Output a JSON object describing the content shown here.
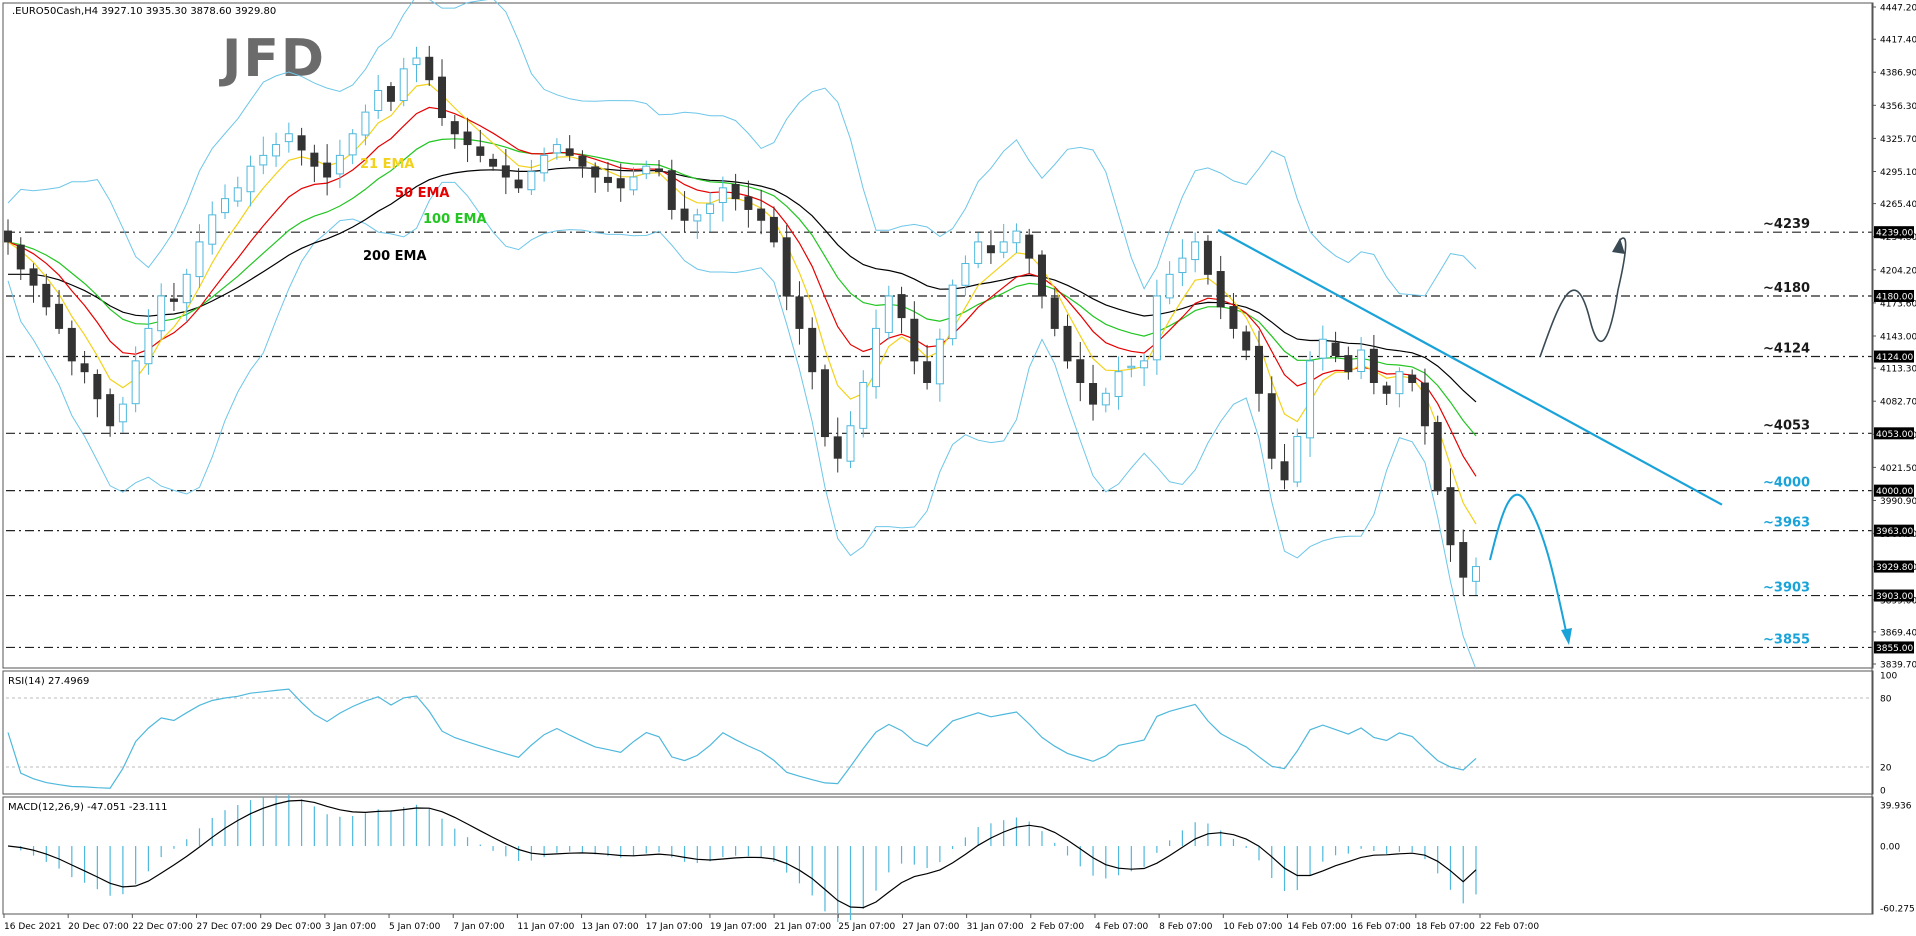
{
  "header": {
    "symbol_info": ".EURO50Cash,H4  3927.10 3935.30 3878.60 3929.80",
    "logo": "JFD"
  },
  "price_axis": {
    "ticks": [
      "4447.20",
      "4417.40",
      "4386.90",
      "4356.30",
      "4325.70",
      "4295.10",
      "4265.40",
      "4234.80",
      "4204.20",
      "4173.60",
      "4143.00",
      "4113.30",
      "4082.70",
      "4052.10",
      "4021.50",
      "3990.90",
      "3960.30",
      "3929.70",
      "3899.00",
      "3869.40",
      "3839.70"
    ],
    "boxes": [
      {
        "label": "4239.00",
        "value": 4239,
        "color": "#000000"
      },
      {
        "label": "4180.00",
        "value": 4180,
        "color": "#000000"
      },
      {
        "label": "4124.00",
        "value": 4124,
        "color": "#000000"
      },
      {
        "label": "4053.00",
        "value": 4053,
        "color": "#000000"
      },
      {
        "label": "4000.00",
        "value": 4000,
        "color": "#000000"
      },
      {
        "label": "3963.00",
        "value": 3963,
        "color": "#000000"
      },
      {
        "label": "3929.80",
        "value": 3929.8,
        "color": "#000000"
      },
      {
        "label": "3903.00",
        "value": 3903,
        "color": "#000000"
      },
      {
        "label": "3855.00",
        "value": 3855,
        "color": "#000000"
      }
    ]
  },
  "levels": [
    {
      "label": "~4239",
      "value": 4239,
      "color": "#1a1a1a"
    },
    {
      "label": "~4180",
      "value": 4180,
      "color": "#1a1a1a"
    },
    {
      "label": "~4124",
      "value": 4124,
      "color": "#1a1a1a"
    },
    {
      "label": "~4053",
      "value": 4053,
      "color": "#1a1a1a"
    },
    {
      "label": "~4000",
      "value": 4000,
      "color": "#1aa3d9"
    },
    {
      "label": "~3963",
      "value": 3963,
      "color": "#1aa3d9"
    },
    {
      "label": "~3903",
      "value": 3903,
      "color": "#1aa3d9"
    },
    {
      "label": "~3855",
      "value": 3855,
      "color": "#1aa3d9"
    }
  ],
  "ema_labels": [
    {
      "text": "21 EMA",
      "color": "#f2d21b"
    },
    {
      "text": "50 EMA",
      "color": "#e60000"
    },
    {
      "text": "100 EMA",
      "color": "#22c522"
    },
    {
      "text": "200 EMA",
      "color": "#000000"
    }
  ],
  "x_labels": [
    "16 Dec 2021",
    "20 Dec 07:00",
    "22 Dec 07:00",
    "27 Dec 07:00",
    "29 Dec 07:00",
    "3 Jan 07:00",
    "5 Jan 07:00",
    "7 Jan 07:00",
    "11 Jan 07:00",
    "13 Jan 07:00",
    "17 Jan 07:00",
    "19 Jan 07:00",
    "21 Jan 07:00",
    "25 Jan 07:00",
    "27 Jan 07:00",
    "31 Jan 07:00",
    "2 Feb 07:00",
    "4 Feb 07:00",
    "8 Feb 07:00",
    "10 Feb 07:00",
    "14 Feb 07:00",
    "16 Feb 07:00",
    "18 Feb 07:00",
    "22 Feb 07:00"
  ],
  "rsi": {
    "label": "RSI(14) 27.4969",
    "ticks": [
      "100",
      "80",
      "20",
      "0"
    ]
  },
  "macd": {
    "label": "MACD(12,26,9) -47.051 -23.111",
    "ticks": [
      "39.936",
      "0.00",
      "-60.275"
    ]
  },
  "colors": {
    "bull": "#4fb8dc",
    "bear": "#333333",
    "bands": "#6ec6e8",
    "trend": "#1aa3d9",
    "projection_up": "#3a4a55",
    "projection_down": "#1aa3d9"
  },
  "chart_data": {
    "type": "candlestick",
    "title": ".EURO50Cash,H4",
    "y_range": [
      3839.7,
      4447.2
    ],
    "closes": [
      4230,
      4205,
      4190,
      4170,
      4150,
      4120,
      4110,
      4085,
      4060,
      4080,
      4120,
      4150,
      4180,
      4175,
      4200,
      4230,
      4255,
      4270,
      4280,
      4300,
      4310,
      4320,
      4330,
      4315,
      4300,
      4290,
      4310,
      4330,
      4350,
      4370,
      4360,
      4390,
      4400,
      4380,
      4345,
      4330,
      4320,
      4310,
      4300,
      4290,
      4280,
      4295,
      4310,
      4320,
      4310,
      4300,
      4290,
      4285,
      4280,
      4290,
      4300,
      4295,
      4260,
      4250,
      4255,
      4265,
      4280,
      4270,
      4260,
      4250,
      4230,
      4180,
      4150,
      4110,
      4050,
      4030,
      4060,
      4100,
      4150,
      4180,
      4160,
      4120,
      4100,
      4140,
      4190,
      4210,
      4230,
      4220,
      4230,
      4240,
      4215,
      4180,
      4150,
      4120,
      4100,
      4080,
      4090,
      4110,
      4115,
      4120,
      4180,
      4200,
      4215,
      4230,
      4200,
      4170,
      4150,
      4130,
      4090,
      4030,
      4010,
      4050,
      4120,
      4140,
      4125,
      4110,
      4130,
      4100,
      4090,
      4110,
      4100,
      4060,
      4000,
      3950,
      3920,
      3929.8
    ],
    "rsi_last": 27.4969,
    "macd_last": -47.051,
    "signal_last": -23.111
  }
}
